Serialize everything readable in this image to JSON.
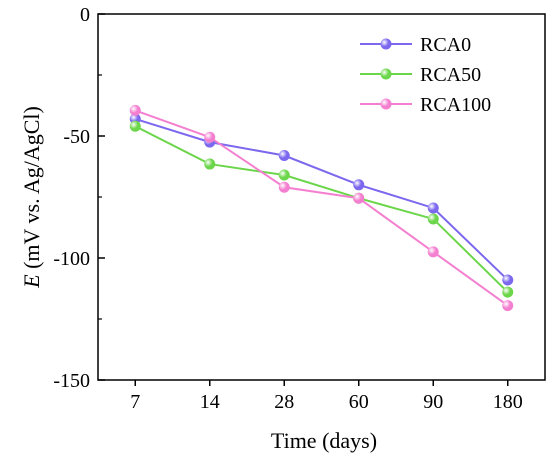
{
  "chart_data": {
    "type": "line",
    "title": "",
    "xlabel": "Time (days)",
    "ylabel_italic": "E",
    "ylabel_rest": " (mV vs. Ag/AgCl)",
    "categories": [
      "7",
      "14",
      "28",
      "60",
      "90",
      "180"
    ],
    "ylim": [
      -150,
      0
    ],
    "yticks": [
      "0",
      "-50",
      "-100",
      "-150"
    ],
    "ytick_values": [
      0,
      -50,
      -100,
      -150
    ],
    "grid": false,
    "legend_position": "top-right",
    "series": [
      {
        "name": "RCA0",
        "color": "#7b68ee",
        "values": [
          -43,
          -52.5,
          -58,
          -70,
          -79.5,
          -109
        ]
      },
      {
        "name": "RCA50",
        "color": "#6cd64a",
        "values": [
          -46,
          -61.5,
          -66,
          -75.5,
          -84,
          -114
        ]
      },
      {
        "name": "RCA100",
        "color": "#f47fd0",
        "values": [
          -39.5,
          -50.5,
          -71,
          -75.5,
          -97.5,
          -119.5
        ]
      }
    ]
  }
}
